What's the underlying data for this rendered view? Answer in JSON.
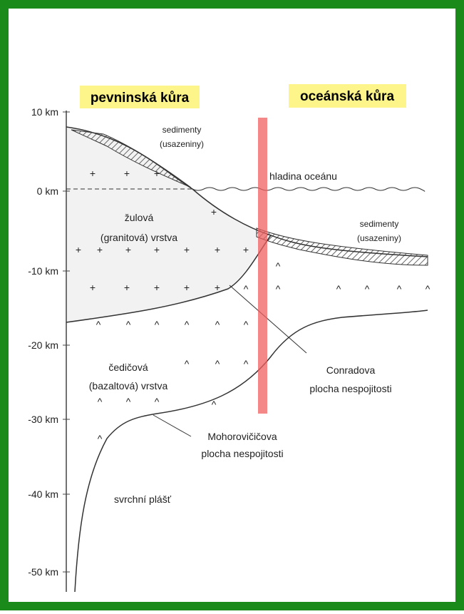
{
  "headers": {
    "continental": "pevninská kůra",
    "oceanic": "oceánská kůra"
  },
  "axis": {
    "labels": [
      "10 km",
      "0 km",
      "-10 km",
      "-20 km",
      "-30 km",
      "-40 km",
      "-50 km"
    ]
  },
  "labels": {
    "sediments_left": [
      "sedimenty",
      "(usazeniny)"
    ],
    "ocean_level": "hladina oceánu",
    "granite": [
      "žulová",
      "(granitová) vrstva"
    ],
    "sediments_right": [
      "sedimenty",
      "(usazeniny)"
    ],
    "basalt": [
      "čedičová",
      "(bazaltová) vrstva"
    ],
    "conrad": [
      "Conradova",
      "plocha nespojitosti"
    ],
    "moho": [
      "Mohorovičičova",
      "plocha nespojitosti"
    ],
    "mantle": "svrchní plášť"
  }
}
